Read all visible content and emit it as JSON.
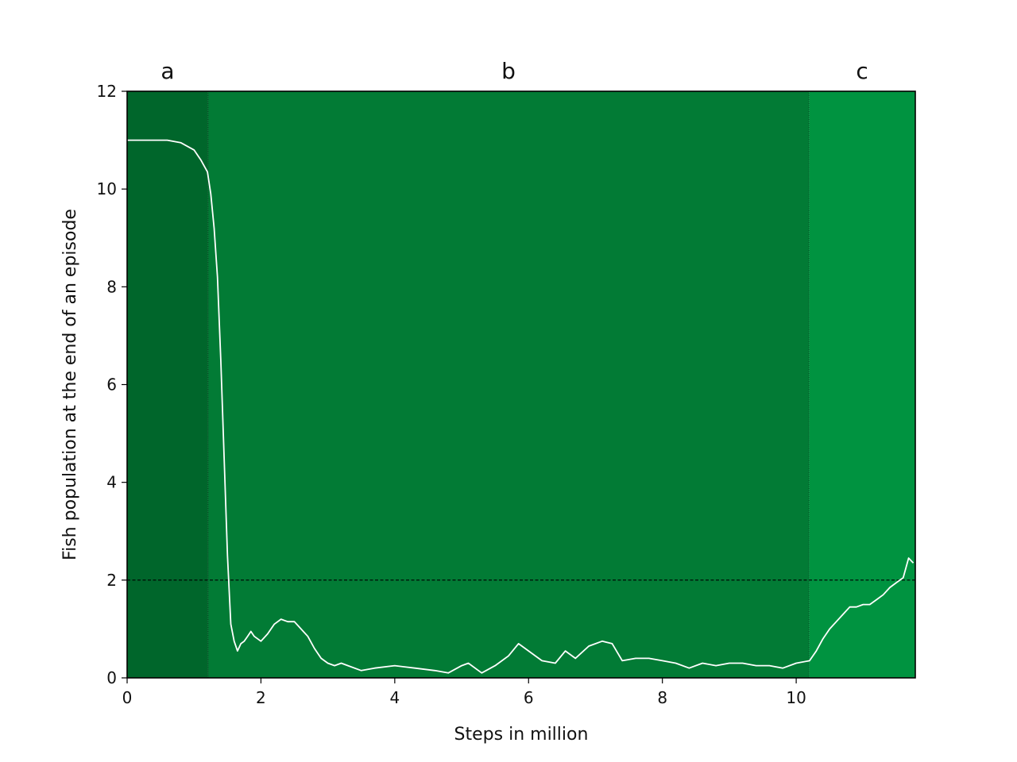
{
  "chart_data": {
    "type": "line",
    "xlabel": "Steps in million",
    "ylabel": "Fish population at the end of an episode",
    "xlim": [
      0,
      11.78
    ],
    "ylim": [
      0,
      12
    ],
    "xticks": [
      "0",
      "2",
      "4",
      "6",
      "8",
      "10"
    ],
    "yticks": [
      "0",
      "2",
      "4",
      "6",
      "8",
      "10",
      "12"
    ],
    "grid": false,
    "threshold": {
      "y": 2,
      "style": "dashed",
      "color": "#000000"
    },
    "phases": [
      {
        "label": "a",
        "x_start": 0,
        "x_end": 1.21,
        "color": "#00662b"
      },
      {
        "label": "b",
        "x_start": 1.21,
        "x_end": 10.19,
        "color": "#027b35"
      },
      {
        "label": "c",
        "x_start": 10.19,
        "x_end": 11.78,
        "color": "#009340"
      }
    ],
    "series": [
      {
        "color": "#ffffff",
        "x": [
          0.0,
          0.3,
          0.6,
          0.8,
          1.0,
          1.1,
          1.2,
          1.25,
          1.3,
          1.35,
          1.4,
          1.45,
          1.5,
          1.55,
          1.6,
          1.65,
          1.7,
          1.75,
          1.8,
          1.85,
          1.9,
          2.0,
          2.1,
          2.2,
          2.3,
          2.4,
          2.5,
          2.6,
          2.7,
          2.8,
          2.9,
          3.0,
          3.1,
          3.2,
          3.3,
          3.5,
          3.7,
          4.0,
          4.3,
          4.6,
          4.8,
          5.0,
          5.1,
          5.3,
          5.5,
          5.7,
          5.85,
          6.0,
          6.2,
          6.4,
          6.55,
          6.7,
          6.9,
          7.1,
          7.25,
          7.4,
          7.6,
          7.8,
          8.0,
          8.2,
          8.4,
          8.6,
          8.8,
          9.0,
          9.2,
          9.4,
          9.6,
          9.8,
          10.0,
          10.2,
          10.3,
          10.4,
          10.5,
          10.6,
          10.7,
          10.8,
          10.9,
          11.0,
          11.1,
          11.2,
          11.3,
          11.4,
          11.5,
          11.6,
          11.68,
          11.75
        ],
        "y": [
          11.0,
          11.0,
          11.0,
          10.95,
          10.8,
          10.6,
          10.35,
          9.9,
          9.2,
          8.2,
          6.5,
          4.5,
          2.5,
          1.1,
          0.75,
          0.55,
          0.7,
          0.75,
          0.85,
          0.95,
          0.85,
          0.75,
          0.9,
          1.1,
          1.2,
          1.15,
          1.15,
          1.0,
          0.85,
          0.6,
          0.4,
          0.3,
          0.25,
          0.3,
          0.25,
          0.15,
          0.2,
          0.25,
          0.2,
          0.15,
          0.1,
          0.25,
          0.3,
          0.1,
          0.25,
          0.45,
          0.7,
          0.55,
          0.35,
          0.3,
          0.55,
          0.4,
          0.65,
          0.75,
          0.7,
          0.35,
          0.4,
          0.4,
          0.35,
          0.3,
          0.2,
          0.3,
          0.25,
          0.3,
          0.3,
          0.25,
          0.25,
          0.2,
          0.3,
          0.35,
          0.55,
          0.8,
          1.0,
          1.15,
          1.3,
          1.45,
          1.45,
          1.5,
          1.5,
          1.6,
          1.7,
          1.85,
          1.95,
          2.05,
          2.45,
          2.35
        ]
      }
    ]
  }
}
